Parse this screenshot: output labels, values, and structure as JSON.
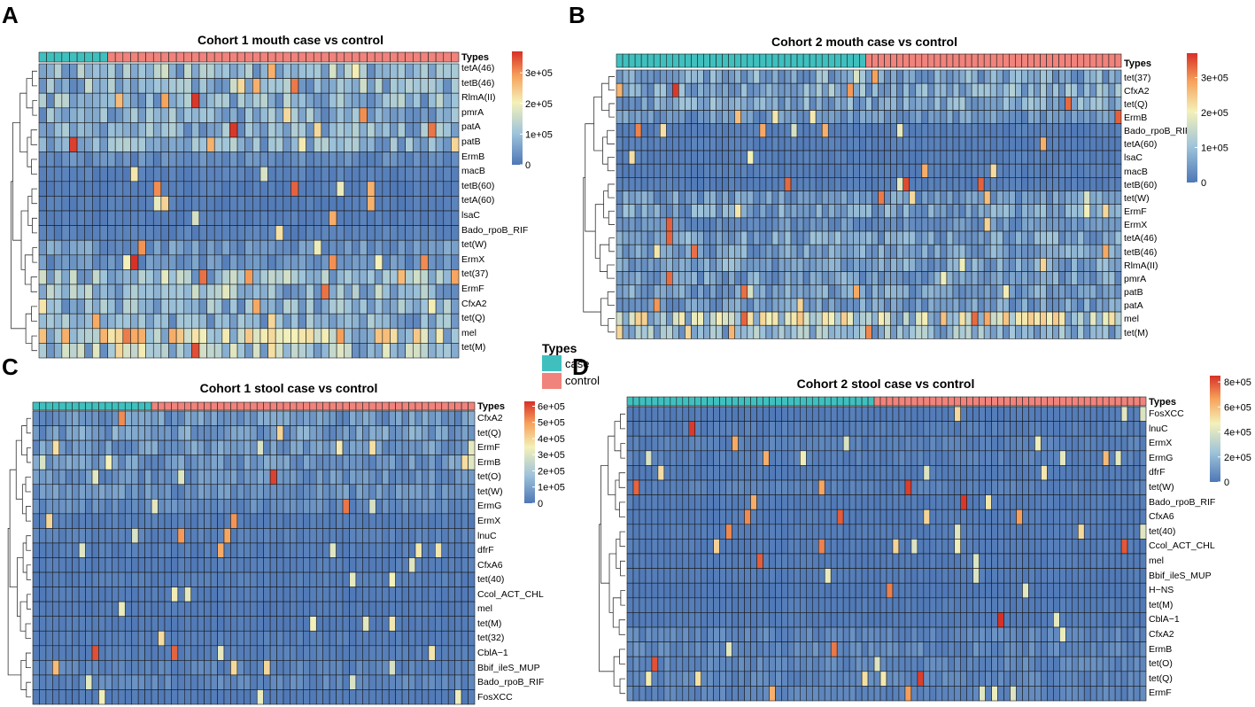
{
  "types_legend": {
    "title": "Types",
    "items": [
      {
        "label": "case",
        "color": "#3fc0bf"
      },
      {
        "label": "control",
        "color": "#f0837c"
      }
    ]
  },
  "colors": {
    "case": "#3fc0bf",
    "control": "#f0837c",
    "scale": [
      "#4e77b6",
      "#9fc4da",
      "#f4f1b9",
      "#f7a35c",
      "#d73027"
    ]
  },
  "chart_data": [
    {
      "type": "heatmap",
      "panel": "A",
      "title": "Cohort 1 mouth case vs control",
      "annotation_label": "Types",
      "n_case": 9,
      "n_control": 46,
      "seed": 11,
      "rows": [
        "tetA(46)",
        "tetB(46)",
        "RlmA(II)",
        "pmrA",
        "patA",
        "patB",
        "ErmB",
        "macB",
        "tetB(60)",
        "tetA(60)",
        "lsaC",
        "Bado_rpoB_RIF",
        "tet(W)",
        "ErmX",
        "tet(37)",
        "ErmF",
        "CfxA2",
        "tet(Q)",
        "mel",
        "tet(M)"
      ],
      "row_means": [
        0.26,
        0.25,
        0.22,
        0.2,
        0.2,
        0.21,
        0.08,
        0.04,
        0.03,
        0.03,
        0.03,
        0.04,
        0.13,
        0.1,
        0.26,
        0.25,
        0.21,
        0.2,
        0.45,
        0.28
      ],
      "legend_ticks": [
        "3e+05",
        "2e+05",
        "1e+05",
        "0"
      ],
      "legend_max": 370000,
      "legend_values": [
        300000,
        200000,
        100000,
        0
      ]
    },
    {
      "type": "heatmap",
      "panel": "B",
      "title": "Cohort 2 mouth case vs control",
      "annotation_label": "Types",
      "n_case": 40,
      "n_control": 41,
      "seed": 23,
      "rows": [
        "tet(37)",
        "CfxA2",
        "tet(Q)",
        "ErmB",
        "Bado_rpoB_RIF",
        "tetA(60)",
        "lsaC",
        "macB",
        "tetB(60)",
        "tet(W)",
        "ErmF",
        "ErmX",
        "tetA(46)",
        "tetB(46)",
        "RlmA(II)",
        "pmrA",
        "patB",
        "patA",
        "mel",
        "tet(M)"
      ],
      "row_means": [
        0.18,
        0.2,
        0.18,
        0.12,
        0.03,
        0.03,
        0.03,
        0.03,
        0.03,
        0.13,
        0.16,
        0.1,
        0.16,
        0.15,
        0.16,
        0.15,
        0.15,
        0.14,
        0.4,
        0.22
      ],
      "legend_ticks": [
        "3e+05",
        "2e+05",
        "1e+05",
        "0"
      ],
      "legend_max": 370000,
      "legend_values": [
        300000,
        200000,
        100000,
        0
      ]
    },
    {
      "type": "heatmap",
      "panel": "C",
      "title": "Cohort 1 stool case vs control",
      "annotation_label": "Types",
      "n_case": 18,
      "n_control": 49,
      "seed": 37,
      "rows": [
        "CfxA2",
        "tet(Q)",
        "ErmF",
        "ErmB",
        "tet(O)",
        "tet(W)",
        "ErmG",
        "ErmX",
        "lnuC",
        "dfrF",
        "CfxA6",
        "tet(40)",
        "Ccol_ACT_CHL",
        "mel",
        "tet(M)",
        "tet(32)",
        "CblA−1",
        "Bbif_ileS_MUP",
        "Bado_rpoB_RIF",
        "FosXCC"
      ],
      "row_means": [
        0.12,
        0.14,
        0.12,
        0.12,
        0.1,
        0.1,
        0.07,
        0.03,
        0.04,
        0.03,
        0.03,
        0.03,
        0.02,
        0.02,
        0.02,
        0.03,
        0.03,
        0.05,
        0.06,
        0.02
      ],
      "legend_ticks": [
        "6e+05",
        "5e+05",
        "4e+05",
        "3e+05",
        "2e+05",
        "1e+05",
        "0"
      ],
      "legend_max": 630000,
      "legend_values": [
        600000,
        500000,
        400000,
        300000,
        200000,
        100000,
        0
      ]
    },
    {
      "type": "heatmap",
      "panel": "D",
      "title": "Cohort 2 stool case vs control",
      "annotation_label": "Types",
      "n_case": 40,
      "n_control": 44,
      "seed": 53,
      "rows": [
        "FosXCC",
        "lnuC",
        "ErmX",
        "ErmG",
        "dfrF",
        "tet(W)",
        "Bado_rpoB_RIF",
        "CfxA6",
        "tet(40)",
        "Ccol_ACT_CHL",
        "mel",
        "Bbif_ileS_MUP",
        "H−NS",
        "tet(M)",
        "CblA−1",
        "CfxA2",
        "ErmB",
        "tet(O)",
        "tet(Q)",
        "ErmF"
      ],
      "row_means": [
        0.02,
        0.03,
        0.04,
        0.04,
        0.02,
        0.04,
        0.02,
        0.02,
        0.02,
        0.02,
        0.02,
        0.02,
        0.01,
        0.02,
        0.02,
        0.06,
        0.07,
        0.06,
        0.06,
        0.05
      ],
      "legend_ticks": [
        "8e+05",
        "6e+05",
        "4e+05",
        "2e+05",
        "0"
      ],
      "legend_max": 850000,
      "legend_values": [
        800000,
        600000,
        400000,
        200000,
        0
      ]
    }
  ]
}
